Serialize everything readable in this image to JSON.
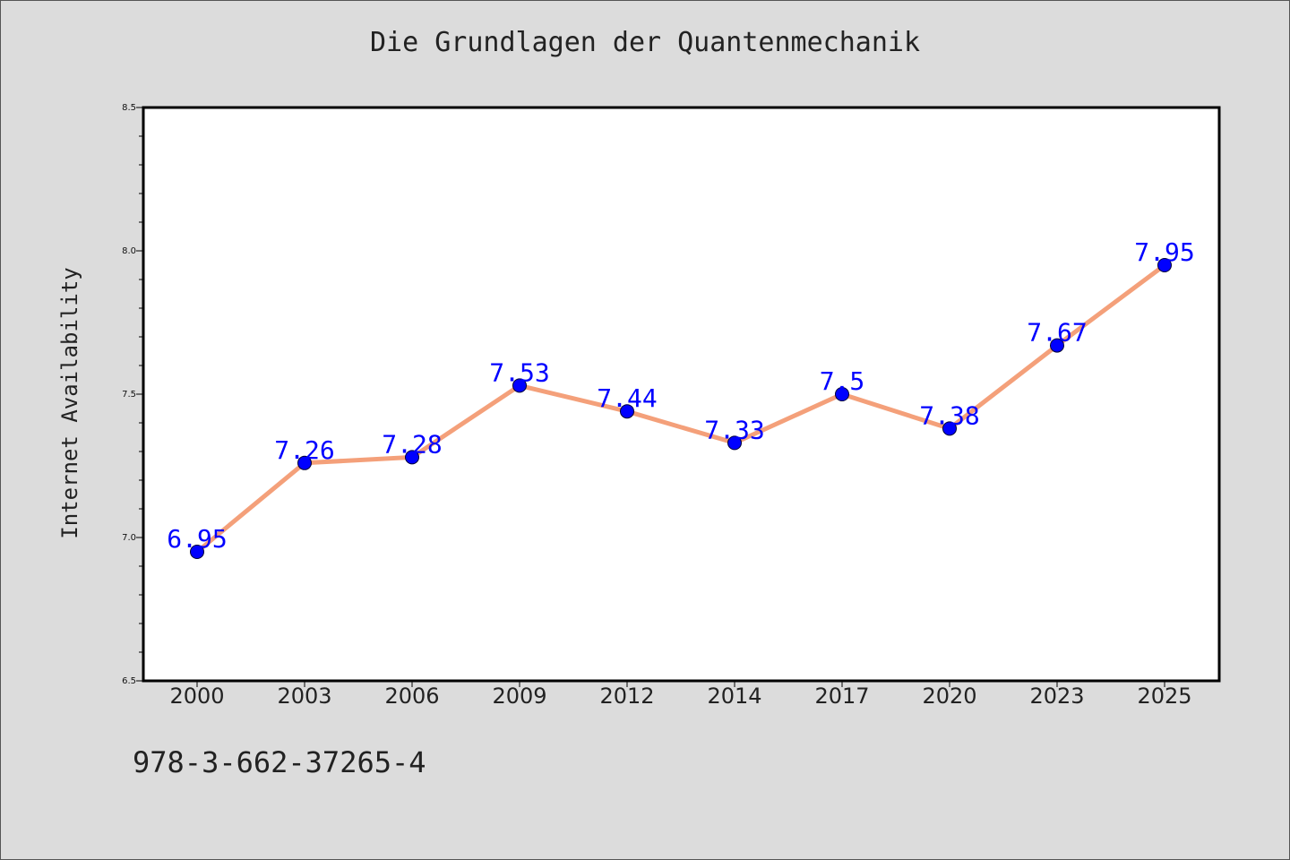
{
  "chart_data": {
    "type": "line",
    "title": "Die Grundlagen der Quantenmechanik",
    "xlabel": "",
    "ylabel": "Internet Availability",
    "categories": [
      "2000",
      "2003",
      "2006",
      "2009",
      "2012",
      "2014",
      "2017",
      "2020",
      "2023",
      "2025"
    ],
    "series": [
      {
        "values": [
          6.95,
          7.26,
          7.28,
          7.53,
          7.44,
          7.33,
          7.5,
          7.38,
          7.67,
          7.95
        ],
        "data_labels": [
          "6.95",
          "7.26",
          "7.28",
          "7.53",
          "7.44",
          "7.33",
          "7.5",
          "7.38",
          "7.67",
          "7.95"
        ],
        "line_color": "#f4a07a",
        "marker_color": "#0000ff"
      }
    ],
    "ylim": [
      6.5,
      8.5
    ],
    "yticks": [
      "6.5",
      "7.0",
      "7.5",
      "8.0",
      "8.5"
    ],
    "grid": false,
    "legend": "none"
  },
  "footer": {
    "isbn": "978-3-662-37265-4"
  },
  "colors": {
    "background": "#dcdcdc",
    "plot_background": "#ffffff",
    "line": "#f4a07a",
    "marker": "#0000ff",
    "data_label": "#0000ff"
  }
}
